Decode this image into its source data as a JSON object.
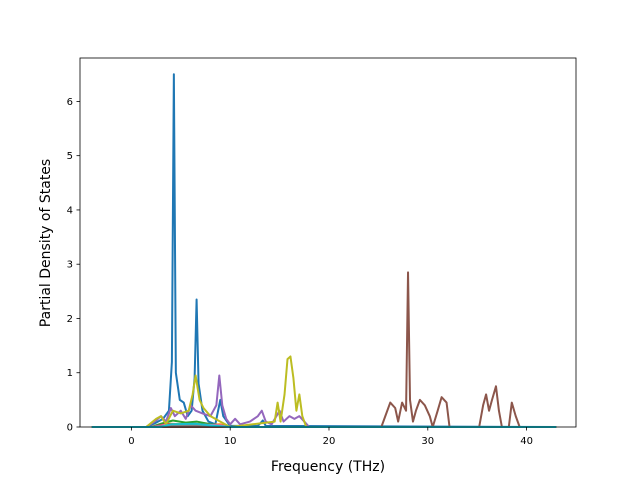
{
  "chart_data": {
    "type": "line",
    "xlabel": "Frequency (THz)",
    "ylabel": "Partial Density of States",
    "xlim": [
      -5.2,
      45
    ],
    "ylim": [
      0,
      6.8
    ],
    "xticks": [
      0,
      10,
      20,
      30,
      40
    ],
    "yticks": [
      0,
      1,
      2,
      3,
      4,
      5,
      6
    ],
    "grid": false,
    "series": [
      {
        "color": "#1f77b4",
        "points": [
          [
            -4,
            0
          ],
          [
            1.5,
            0
          ],
          [
            2.5,
            0.08
          ],
          [
            3.2,
            0.15
          ],
          [
            3.8,
            0.3
          ],
          [
            4.1,
            1.2
          ],
          [
            4.3,
            6.5
          ],
          [
            4.5,
            1.0
          ],
          [
            4.9,
            0.5
          ],
          [
            5.3,
            0.45
          ],
          [
            5.7,
            0.2
          ],
          [
            6.1,
            0.3
          ],
          [
            6.4,
            0.9
          ],
          [
            6.6,
            2.35
          ],
          [
            6.8,
            0.8
          ],
          [
            7.2,
            0.3
          ],
          [
            7.8,
            0.1
          ],
          [
            8.5,
            0.05
          ],
          [
            9.0,
            0.5
          ],
          [
            9.3,
            0.2
          ],
          [
            10,
            0.02
          ],
          [
            12.8,
            0.02
          ],
          [
            13.3,
            0.12
          ],
          [
            13.6,
            0.02
          ],
          [
            43,
            0
          ]
        ]
      },
      {
        "color": "#ff7f0e",
        "points": [
          [
            -4,
            0
          ],
          [
            2,
            0
          ],
          [
            3,
            0.04
          ],
          [
            4,
            0.06
          ],
          [
            5,
            0.05
          ],
          [
            6.5,
            0.06
          ],
          [
            8,
            0.04
          ],
          [
            9,
            0.05
          ],
          [
            10,
            0
          ],
          [
            43,
            0
          ]
        ]
      },
      {
        "color": "#2ca02c",
        "points": [
          [
            -4,
            0
          ],
          [
            2,
            0
          ],
          [
            3,
            0.06
          ],
          [
            4.2,
            0.12
          ],
          [
            5.5,
            0.08
          ],
          [
            6.6,
            0.1
          ],
          [
            8,
            0.05
          ],
          [
            10,
            0
          ],
          [
            43,
            0
          ]
        ]
      },
      {
        "color": "#d62728",
        "points": [
          [
            -4,
            0
          ],
          [
            2,
            0
          ],
          [
            3.5,
            0.05
          ],
          [
            6,
            0.04
          ],
          [
            9,
            0.03
          ],
          [
            10,
            0
          ],
          [
            43,
            0
          ]
        ]
      },
      {
        "color": "#9467bd",
        "points": [
          [
            -4,
            0
          ],
          [
            1.5,
            0
          ],
          [
            2.5,
            0.12
          ],
          [
            3,
            0.2
          ],
          [
            3.5,
            0.1
          ],
          [
            4,
            0.35
          ],
          [
            4.4,
            0.2
          ],
          [
            5,
            0.3
          ],
          [
            5.5,
            0.15
          ],
          [
            6,
            0.4
          ],
          [
            6.5,
            0.3
          ],
          [
            7.2,
            0.25
          ],
          [
            8,
            0.2
          ],
          [
            8.6,
            0.4
          ],
          [
            8.9,
            0.95
          ],
          [
            9.2,
            0.4
          ],
          [
            9.6,
            0.15
          ],
          [
            10,
            0.05
          ],
          [
            10.5,
            0.15
          ],
          [
            11,
            0.05
          ],
          [
            12,
            0.1
          ],
          [
            12.8,
            0.2
          ],
          [
            13.2,
            0.3
          ],
          [
            13.6,
            0.1
          ],
          [
            14.2,
            0.05
          ],
          [
            15,
            0.3
          ],
          [
            15.4,
            0.1
          ],
          [
            16,
            0.2
          ],
          [
            16.5,
            0.15
          ],
          [
            17,
            0.2
          ],
          [
            17.5,
            0.1
          ],
          [
            18,
            0
          ],
          [
            43,
            0
          ]
        ]
      },
      {
        "color": "#8c564b",
        "points": [
          [
            -4,
            0
          ],
          [
            25.3,
            0
          ],
          [
            25.7,
            0.2
          ],
          [
            26.2,
            0.45
          ],
          [
            26.7,
            0.35
          ],
          [
            27.0,
            0.1
          ],
          [
            27.4,
            0.45
          ],
          [
            27.8,
            0.3
          ],
          [
            28.0,
            2.85
          ],
          [
            28.2,
            0.5
          ],
          [
            28.5,
            0.1
          ],
          [
            28.8,
            0.3
          ],
          [
            29.2,
            0.5
          ],
          [
            29.7,
            0.4
          ],
          [
            30.2,
            0.2
          ],
          [
            30.5,
            0
          ],
          [
            31.0,
            0.3
          ],
          [
            31.4,
            0.55
          ],
          [
            31.9,
            0.45
          ],
          [
            32.2,
            0
          ],
          [
            35.2,
            0
          ],
          [
            35.6,
            0.4
          ],
          [
            35.9,
            0.6
          ],
          [
            36.2,
            0.3
          ],
          [
            36.5,
            0.5
          ],
          [
            36.9,
            0.75
          ],
          [
            37.2,
            0.3
          ],
          [
            37.5,
            0
          ],
          [
            38.2,
            0
          ],
          [
            38.5,
            0.45
          ],
          [
            38.9,
            0.2
          ],
          [
            39.3,
            0
          ],
          [
            43,
            0
          ]
        ]
      },
      {
        "color": "#e377c2",
        "points": [
          [
            -4,
            0
          ],
          [
            2,
            0
          ],
          [
            3.5,
            0.04
          ],
          [
            6.5,
            0.05
          ],
          [
            9,
            0.03
          ],
          [
            10,
            0
          ],
          [
            43,
            0
          ]
        ]
      },
      {
        "color": "#7f7f7f",
        "points": [
          [
            -4,
            0
          ],
          [
            2,
            0
          ],
          [
            4,
            0.03
          ],
          [
            7,
            0.03
          ],
          [
            10,
            0
          ],
          [
            43,
            0
          ]
        ]
      },
      {
        "color": "#bcbd22",
        "points": [
          [
            -4,
            0
          ],
          [
            1.5,
            0
          ],
          [
            2.5,
            0.15
          ],
          [
            3,
            0.2
          ],
          [
            3.5,
            0.05
          ],
          [
            4.2,
            0.3
          ],
          [
            5,
            0.25
          ],
          [
            5.8,
            0.3
          ],
          [
            6.2,
            0.6
          ],
          [
            6.5,
            0.95
          ],
          [
            6.9,
            0.5
          ],
          [
            7.3,
            0.35
          ],
          [
            8,
            0.2
          ],
          [
            9,
            0.1
          ],
          [
            10,
            0
          ],
          [
            14.5,
            0.1
          ],
          [
            14.8,
            0.45
          ],
          [
            15.1,
            0.1
          ],
          [
            15.5,
            0.6
          ],
          [
            15.8,
            1.25
          ],
          [
            16.1,
            1.3
          ],
          [
            16.4,
            0.9
          ],
          [
            16.7,
            0.3
          ],
          [
            17,
            0.6
          ],
          [
            17.3,
            0.2
          ],
          [
            17.7,
            0
          ],
          [
            43,
            0
          ]
        ]
      },
      {
        "color": "#17becf",
        "points": [
          [
            -4,
            0
          ],
          [
            3,
            0
          ],
          [
            4,
            0.05
          ],
          [
            6.5,
            0.06
          ],
          [
            8,
            0.03
          ],
          [
            10,
            0
          ],
          [
            43,
            0
          ]
        ]
      }
    ]
  }
}
